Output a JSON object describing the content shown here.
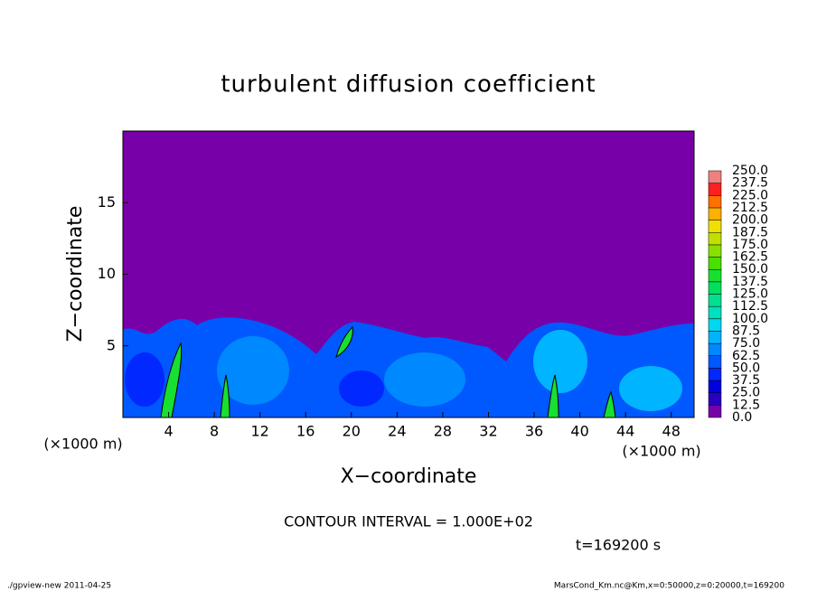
{
  "chart_data": {
    "type": "contour",
    "title": "turbulent diffusion coefficient",
    "xlabel": "X−coordinate",
    "ylabel": "Z−coordinate",
    "x_unit": "(×1000 m)",
    "y_unit": "(×1000 m)",
    "xlim": [
      0,
      50
    ],
    "xticks": [
      4,
      8,
      12,
      16,
      20,
      24,
      28,
      32,
      36,
      40,
      44,
      48
    ],
    "ylim": [
      0,
      20
    ],
    "yticks": [
      5,
      10,
      15
    ],
    "colorbar": {
      "levels": [
        {
          "value": 0,
          "label": "0.0"
        },
        12.5,
        {
          "value": 25,
          "label": "25.0"
        },
        37.5,
        {
          "value": 50,
          "label": "50.0"
        },
        62.5,
        {
          "value": 75,
          "label": "75.0"
        },
        87.5,
        {
          "value": 100,
          "label": "100.0"
        },
        112.5,
        {
          "value": 125,
          "label": "125.0"
        },
        137.5,
        {
          "value": 150,
          "label": "150.0"
        },
        162.5,
        {
          "value": 175,
          "label": "175.0"
        },
        187.5,
        {
          "value": 200,
          "label": "200.0"
        },
        212.5,
        {
          "value": 225,
          "label": "225.0"
        },
        237.5,
        {
          "value": 250,
          "label": "250.0"
        }
      ],
      "colors": [
        "#7800a8",
        "#2800c0",
        "#0000e0",
        "#0028ff",
        "#0058ff",
        "#0088ff",
        "#00b4ff",
        "#00d8f0",
        "#00e0c0",
        "#00e090",
        "#00e060",
        "#18e030",
        "#48e000",
        "#88e000",
        "#c0e000",
        "#f0e000",
        "#ffb000",
        "#ff7000",
        "#ff2020",
        "#f08080"
      ]
    },
    "contour_interval": "CONTOUR INTERVAL = 1.000E+02",
    "time_label": "t=169200 s",
    "footer_left": "./gpview-new   2011-04-25",
    "footer_right": "MarsCond_Km.nc@Km,x=0:50000,z=0:20000,t=169200"
  }
}
